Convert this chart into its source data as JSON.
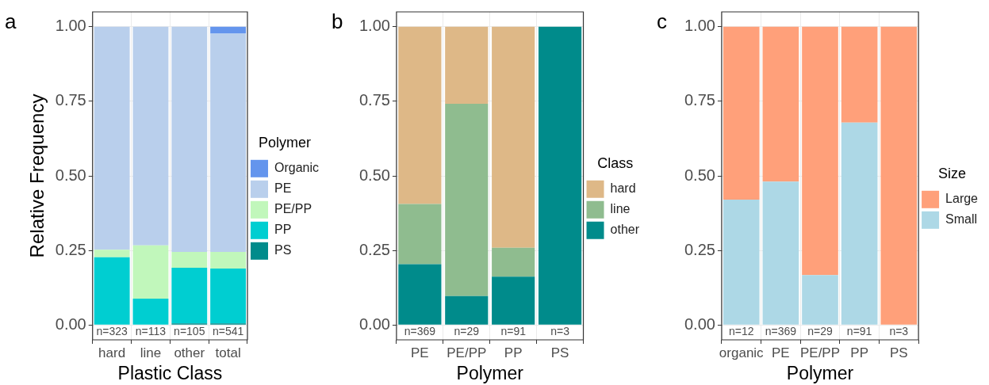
{
  "chart_data": [
    {
      "type": "bar",
      "title": "a",
      "xlabel": "Plastic Class",
      "ylabel": "Relative Frequency",
      "legend_title": "Polymer",
      "categories": [
        "hard",
        "line",
        "other",
        "total"
      ],
      "stacked": true,
      "grid": true,
      "legend": "right",
      "series": [
        {
          "name": "PS",
          "color": "#008b8b",
          "values": [
            0,
            0,
            0.005,
            0.005
          ]
        },
        {
          "name": "PP",
          "color": "#00ced1",
          "values": [
            0.227,
            0.088,
            0.187,
            0.184
          ]
        },
        {
          "name": "PE/PP",
          "color": "#c1f7bb",
          "values": [
            0.025,
            0.179,
            0.053,
            0.056
          ]
        },
        {
          "name": "PE",
          "color": "#b9cfec",
          "values": [
            0.748,
            0.733,
            0.755,
            0.732
          ]
        },
        {
          "name": "Organic",
          "color": "#6495ed",
          "values": [
            0,
            0,
            0,
            0.023
          ]
        }
      ],
      "ylim": [
        -0.05,
        1.05
      ],
      "yticks": [
        {
          "value": 0,
          "label": "0.00"
        },
        {
          "value": 0.25,
          "label": "0.25"
        },
        {
          "value": 0.5,
          "label": "0.50"
        },
        {
          "value": 0.75,
          "label": "0.75"
        },
        {
          "value": 1,
          "label": "1.00"
        }
      ],
      "annotations": [
        "n=323",
        "n=113",
        "n=105",
        "n=541"
      ]
    },
    {
      "type": "bar",
      "title": "b",
      "xlabel": "Polymer",
      "legend_title": "Class",
      "categories": [
        "PE",
        "PE/PP",
        "PP",
        "PS"
      ],
      "stacked": true,
      "grid": true,
      "legend": "right",
      "series": [
        {
          "name": "other",
          "color": "#008b8b",
          "values": [
            0.204,
            0.097,
            0.162,
            1
          ]
        },
        {
          "name": "line",
          "color": "#8fbc8f",
          "values": [
            0.202,
            0.645,
            0.097,
            0
          ]
        },
        {
          "name": "hard",
          "color": "#deb887",
          "values": [
            0.594,
            0.258,
            0.741,
            0
          ]
        }
      ],
      "ylim": [
        -0.05,
        1.05
      ],
      "yticks": [
        {
          "value": 0,
          "label": "0.00"
        },
        {
          "value": 0.25,
          "label": "0.25"
        },
        {
          "value": 0.5,
          "label": "0.50"
        },
        {
          "value": 0.75,
          "label": "0.75"
        },
        {
          "value": 1,
          "label": "1.00"
        }
      ],
      "annotations": [
        "n=369",
        "n=29",
        "n=91",
        "n=3"
      ]
    },
    {
      "type": "bar",
      "title": "c",
      "xlabel": "Polymer",
      "legend_title": "Size",
      "categories": [
        "organic",
        "PE",
        "PE/PP",
        "PP",
        "PS"
      ],
      "stacked": true,
      "grid": true,
      "legend": "right",
      "series": [
        {
          "name": "Small",
          "color": "#add8e6",
          "values": [
            0.42,
            0.481,
            0.167,
            0.679,
            0
          ]
        },
        {
          "name": "Large",
          "color": "#ffa07a",
          "values": [
            0.58,
            0.519,
            0.833,
            0.321,
            1
          ]
        }
      ],
      "ylim": [
        -0.05,
        1.05
      ],
      "yticks": [
        {
          "value": 0,
          "label": "0.00"
        },
        {
          "value": 0.25,
          "label": "0.25"
        },
        {
          "value": 0.5,
          "label": "0.50"
        },
        {
          "value": 0.75,
          "label": "0.75"
        },
        {
          "value": 1,
          "label": "1.00"
        }
      ],
      "annotations": [
        "n=12",
        "n=369",
        "n=29",
        "n=91",
        "n=3"
      ]
    }
  ]
}
